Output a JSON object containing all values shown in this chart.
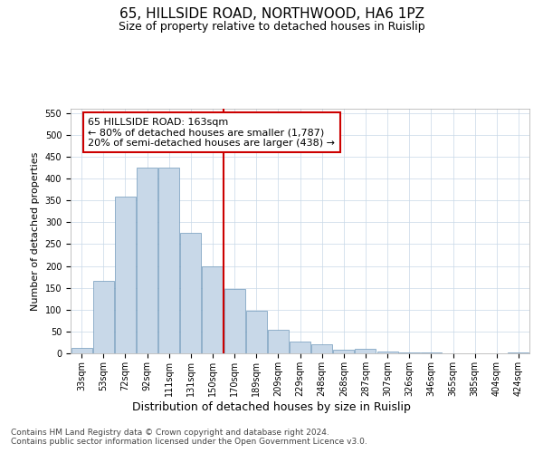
{
  "title": "65, HILLSIDE ROAD, NORTHWOOD, HA6 1PZ",
  "subtitle": "Size of property relative to detached houses in Ruislip",
  "xlabel": "Distribution of detached houses by size in Ruislip",
  "ylabel": "Number of detached properties",
  "categories": [
    "33sqm",
    "53sqm",
    "72sqm",
    "92sqm",
    "111sqm",
    "131sqm",
    "150sqm",
    "170sqm",
    "189sqm",
    "209sqm",
    "229sqm",
    "248sqm",
    "268sqm",
    "287sqm",
    "307sqm",
    "326sqm",
    "346sqm",
    "365sqm",
    "385sqm",
    "404sqm",
    "424sqm"
  ],
  "values": [
    13,
    165,
    358,
    425,
    425,
    275,
    200,
    148,
    97,
    53,
    27,
    20,
    8,
    11,
    5,
    3,
    2,
    1,
    1,
    0,
    2
  ],
  "bar_color": "#c8d8e8",
  "bar_edge_color": "#7099ba",
  "annotation_text": "65 HILLSIDE ROAD: 163sqm\n← 80% of detached houses are smaller (1,787)\n20% of semi-detached houses are larger (438) →",
  "annotation_box_color": "#ffffff",
  "annotation_box_edge_color": "#cc0000",
  "vline_color": "#cc0000",
  "grid_color": "#c8d8e8",
  "background_color": "#ffffff",
  "ylim": [
    0,
    560
  ],
  "yticks": [
    0,
    50,
    100,
    150,
    200,
    250,
    300,
    350,
    400,
    450,
    500,
    550
  ],
  "footer_text": "Contains HM Land Registry data © Crown copyright and database right 2024.\nContains public sector information licensed under the Open Government Licence v3.0.",
  "title_fontsize": 11,
  "subtitle_fontsize": 9,
  "xlabel_fontsize": 9,
  "ylabel_fontsize": 8,
  "tick_fontsize": 7,
  "annotation_fontsize": 8,
  "footer_fontsize": 6.5
}
